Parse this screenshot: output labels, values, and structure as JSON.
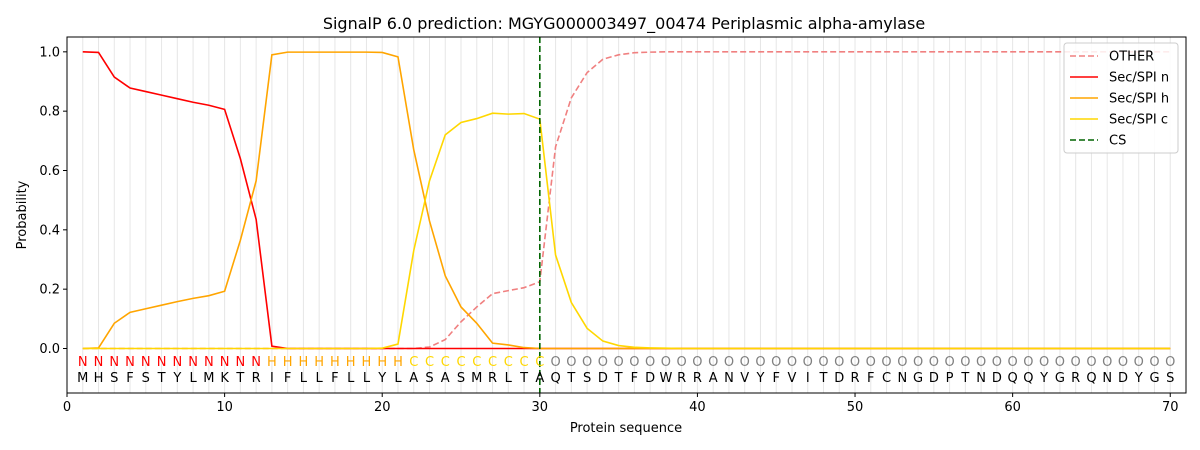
{
  "chart_data": {
    "type": "line",
    "title": "SignalP 6.0 prediction: MGYG000003497_00474 Periplasmic alpha-amylase",
    "xlabel": "Protein sequence",
    "ylabel": "Probability",
    "xlim": [
      0,
      71
    ],
    "ylim": [
      -0.15,
      1.05
    ],
    "xticks": [
      0,
      10,
      20,
      30,
      40,
      50,
      60,
      70
    ],
    "yticks": [
      "0.0",
      "0.2",
      "0.4",
      "0.6",
      "0.8",
      "1.0"
    ],
    "grid": "vertical lines at each residue",
    "legend_position": "top-right",
    "sequence": "MHSFSTYLMKTRIFLLFLLYLASASMRLTAQTSDTFDWRRANVYFVITDRFCNGDPTNDQQYGRQNDYGS",
    "labels": "NNNNNNNNNNNNHHHHHHHHHCCCCCCCCCOOOOOOOOOOOOOOOOOOOOOOOOOOOOOOOOOOOOOOOO",
    "label_colors": {
      "N": "#ff0000",
      "H": "#ffa500",
      "C": "#ffd700",
      "O": "#808080"
    },
    "cs_position": 30,
    "series": [
      {
        "name": "OTHER",
        "color": "#f08080",
        "dash": true,
        "values": [
          0,
          0,
          0,
          0,
          0,
          0,
          0,
          0,
          0,
          0,
          0,
          0,
          0,
          0,
          0,
          0,
          0,
          0,
          0,
          0,
          0,
          0,
          0.005,
          0.03,
          0.09,
          0.14,
          0.185,
          0.195,
          0.205,
          0.225,
          0.68,
          0.845,
          0.93,
          0.975,
          0.99,
          0.997,
          0.999,
          1,
          1,
          1,
          1,
          1,
          1,
          1,
          1,
          1,
          1,
          1,
          1,
          1,
          1,
          1,
          1,
          1,
          1,
          1,
          1,
          1,
          1,
          1,
          1,
          1,
          1,
          1,
          1,
          1,
          1,
          1,
          1,
          1
        ]
      },
      {
        "name": "Sec/SPI n",
        "color": "#ff0000",
        "dash": false,
        "values": [
          1.0,
          0.998,
          0.915,
          0.878,
          0.866,
          0.854,
          0.842,
          0.83,
          0.82,
          0.806,
          0.64,
          0.435,
          0.008,
          0,
          0,
          0,
          0,
          0,
          0,
          0,
          0,
          0,
          0,
          0,
          0,
          0,
          0,
          0,
          0,
          0,
          0,
          0,
          0,
          0,
          0,
          0,
          0,
          0,
          0,
          0,
          0,
          0,
          0,
          0,
          0,
          0,
          0,
          0,
          0,
          0,
          0,
          0,
          0,
          0,
          0,
          0,
          0,
          0,
          0,
          0,
          0,
          0,
          0,
          0,
          0,
          0,
          0,
          0,
          0,
          0
        ]
      },
      {
        "name": "Sec/SPI h",
        "color": "#ffa500",
        "dash": false,
        "values": [
          0,
          0.002,
          0.085,
          0.122,
          0.134,
          0.146,
          0.158,
          0.169,
          0.178,
          0.193,
          0.365,
          0.565,
          0.99,
          0.999,
          0.999,
          0.999,
          0.999,
          0.999,
          0.999,
          0.998,
          0.983,
          0.67,
          0.43,
          0.245,
          0.14,
          0.085,
          0.018,
          0.012,
          0.003,
          0,
          0,
          0,
          0,
          0,
          0,
          0,
          0,
          0,
          0,
          0,
          0,
          0,
          0,
          0,
          0,
          0,
          0,
          0,
          0,
          0,
          0,
          0,
          0,
          0,
          0,
          0,
          0,
          0,
          0,
          0,
          0,
          0,
          0,
          0,
          0,
          0,
          0,
          0,
          0,
          0
        ]
      },
      {
        "name": "Sec/SPI c",
        "color": "#ffd700",
        "dash": false,
        "values": [
          0,
          0,
          0,
          0,
          0,
          0,
          0,
          0,
          0,
          0,
          0,
          0,
          0,
          0,
          0,
          0,
          0,
          0,
          0,
          0.001,
          0.015,
          0.33,
          0.565,
          0.72,
          0.762,
          0.775,
          0.793,
          0.79,
          0.792,
          0.773,
          0.315,
          0.155,
          0.068,
          0.025,
          0.01,
          0.004,
          0.002,
          0.001,
          0,
          0,
          0,
          0,
          0,
          0,
          0,
          0,
          0,
          0,
          0,
          0,
          0,
          0,
          0,
          0,
          0,
          0,
          0,
          0,
          0,
          0,
          0,
          0,
          0,
          0,
          0,
          0,
          0,
          0,
          0,
          0
        ]
      }
    ],
    "legend": [
      {
        "name": "OTHER",
        "color": "#f08080",
        "dash": true
      },
      {
        "name": "Sec/SPI n",
        "color": "#ff0000",
        "dash": false
      },
      {
        "name": "Sec/SPI h",
        "color": "#ffa500",
        "dash": false
      },
      {
        "name": "Sec/SPI c",
        "color": "#ffd700",
        "dash": false
      },
      {
        "name": "CS",
        "color": "#006400",
        "dash": true
      }
    ]
  }
}
